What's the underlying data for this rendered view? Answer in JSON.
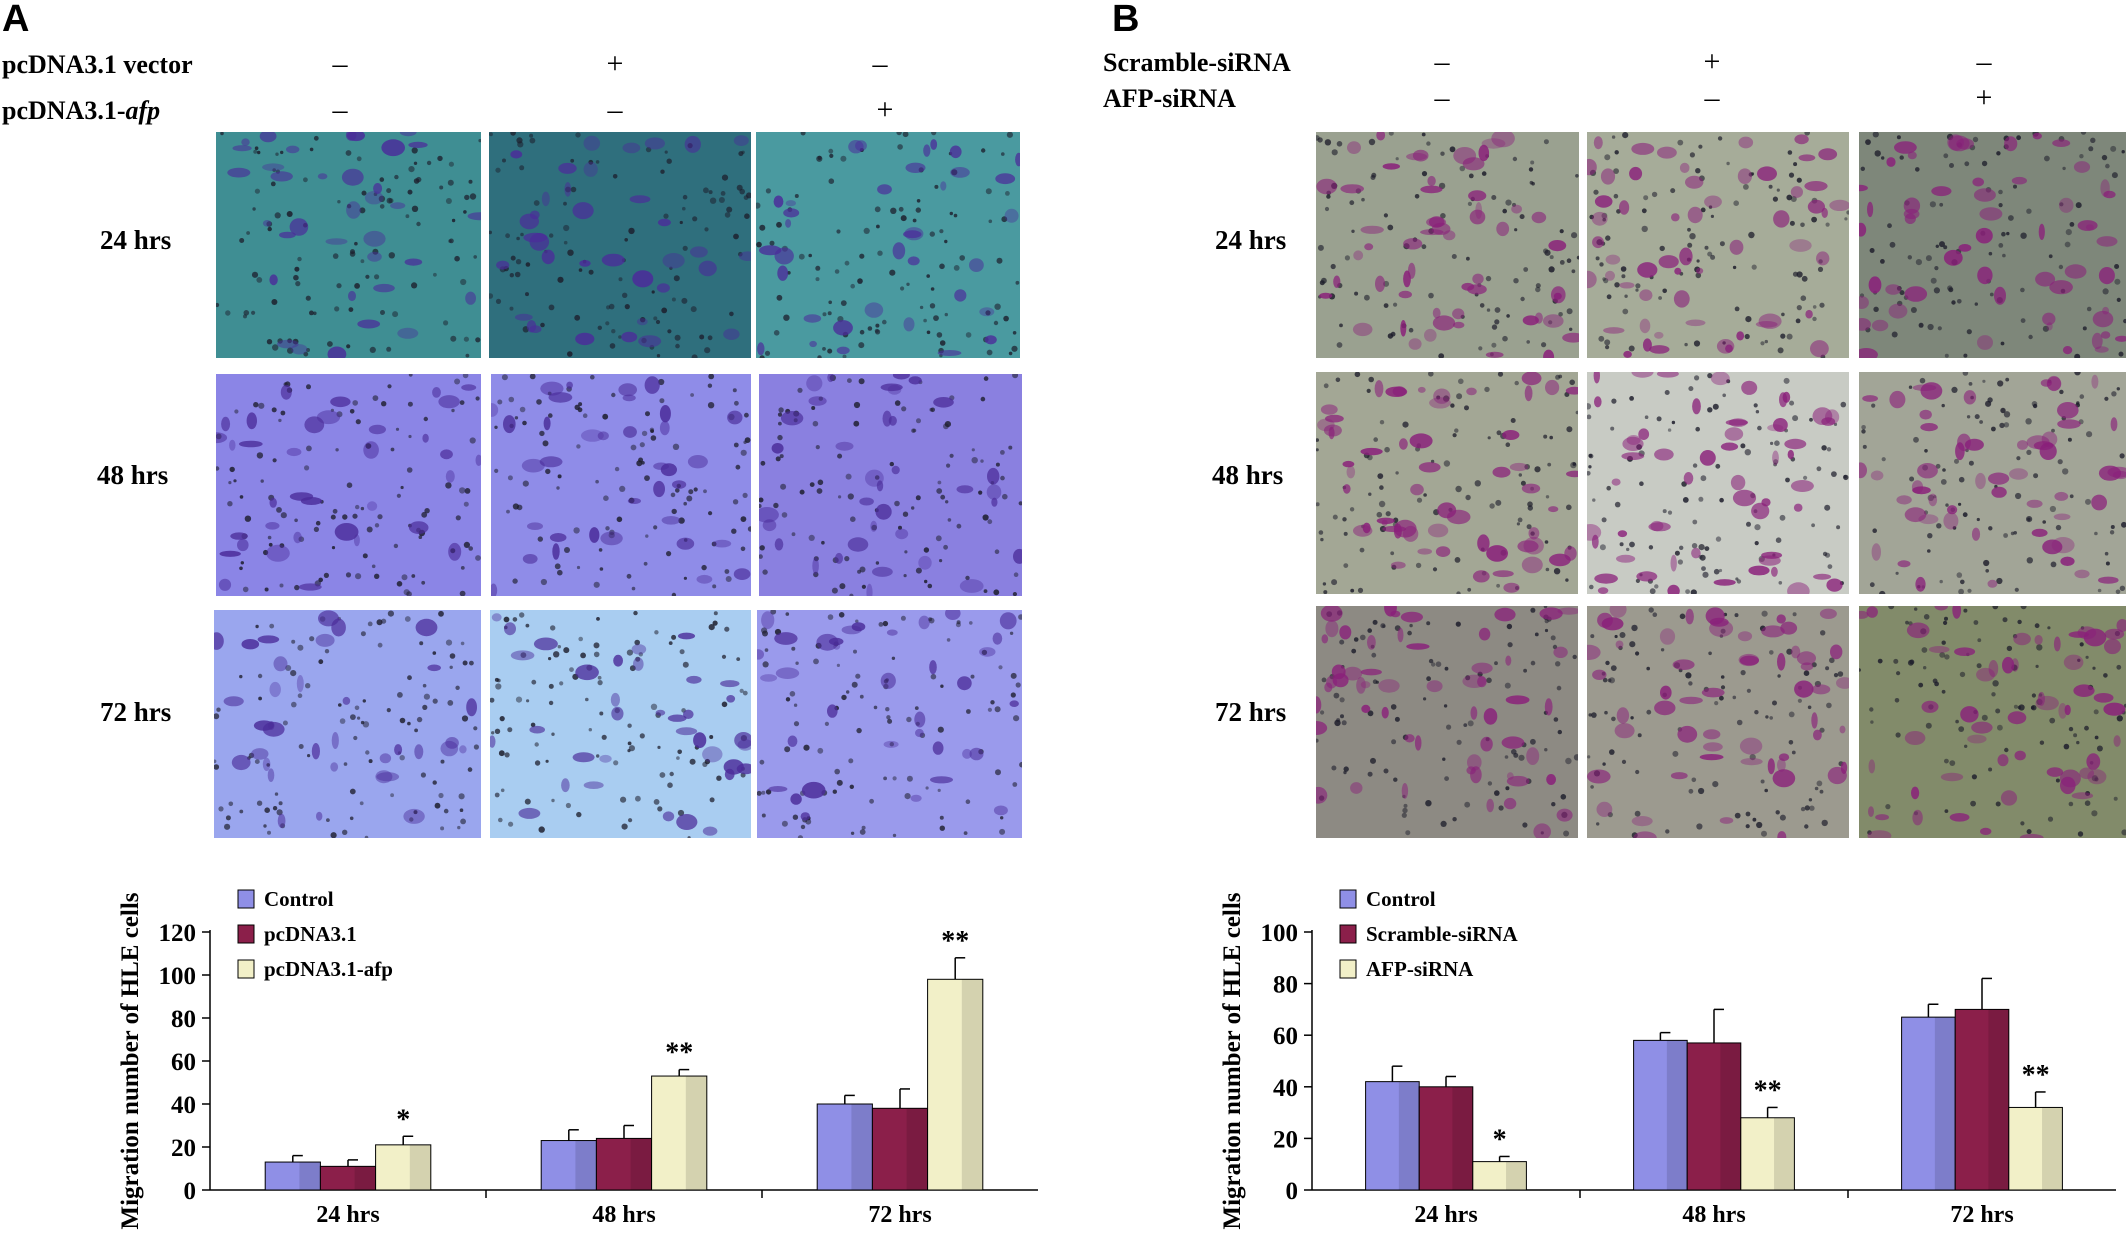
{
  "panels": [
    {
      "letter": "A",
      "conditions": [
        {
          "label": "pcDNA3.1 vector",
          "label_main": "pcDNA3.1 vector",
          "label_italic": "",
          "signs": [
            "–",
            "+",
            "–"
          ]
        },
        {
          "label": "pcDNA3.1-afp",
          "label_main": "pcDNA3.1-",
          "label_italic": "afp",
          "signs": [
            "–",
            "–",
            "+"
          ]
        }
      ],
      "time_points": [
        "24 hrs",
        "48 hrs",
        "72 hrs"
      ],
      "micrograph_colors": [
        [
          "#3f8e93",
          "#2f6f7d",
          "#4a9aa0"
        ],
        [
          "#8b85e6",
          "#8f8ce8",
          "#8a80e0"
        ],
        [
          "#9aa6ee",
          "#a9cdf1",
          "#9a9aec"
        ]
      ],
      "stain_color": "#4b2c9a",
      "chart_data": {
        "type": "bar",
        "ylabel": "Migration number of HLE cells",
        "ylim": [
          0,
          120
        ],
        "yticks": [
          0,
          20,
          40,
          60,
          80,
          100,
          120
        ],
        "categories": [
          "24 hrs",
          "48 hrs",
          "72 hrs"
        ],
        "legend_position": "top-left",
        "series": [
          {
            "name": "Control",
            "color": "#8f8fe6",
            "values": [
              13,
              23,
              40
            ],
            "errors": [
              3,
              5,
              4
            ]
          },
          {
            "name": "pcDNA3.1",
            "color": "#8b1f4a",
            "values": [
              11,
              24,
              38
            ],
            "errors": [
              3,
              6,
              9
            ]
          },
          {
            "name": "pcDNA3.1-afp",
            "color": "#f2f0c8",
            "values": [
              21,
              53,
              98
            ],
            "errors": [
              4,
              3,
              10
            ]
          }
        ],
        "annotations": [
          {
            "category": 0,
            "series": 2,
            "text": "*"
          },
          {
            "category": 1,
            "series": 2,
            "text": "**"
          },
          {
            "category": 2,
            "series": 2,
            "text": "**"
          }
        ]
      }
    },
    {
      "letter": "B",
      "conditions": [
        {
          "label": "Scramble-siRNA",
          "label_main": "Scramble-siRNA",
          "label_italic": "",
          "signs": [
            "–",
            "+",
            "–"
          ]
        },
        {
          "label": "AFP-siRNA",
          "label_main": "AFP-siRNA",
          "label_italic": "",
          "signs": [
            "–",
            "–",
            "+"
          ]
        }
      ],
      "time_points": [
        "24 hrs",
        "48 hrs",
        "72 hrs"
      ],
      "micrograph_colors": [
        [
          "#9aa190",
          "#a6ac99",
          "#7e877a"
        ],
        [
          "#a3a795",
          "#c8cbc4",
          "#a2a597"
        ],
        [
          "#8d8a83",
          "#9c9a8f",
          "#828b6a"
        ]
      ],
      "stain_color": "#8a1f7a",
      "chart_data": {
        "type": "bar",
        "ylabel": "Migration number of HLE cells",
        "ylim": [
          0,
          100
        ],
        "yticks": [
          0,
          20,
          40,
          60,
          80,
          100
        ],
        "categories": [
          "24 hrs",
          "48 hrs",
          "72 hrs"
        ],
        "legend_position": "top-left",
        "series": [
          {
            "name": "Control",
            "color": "#8f8fe6",
            "values": [
              42,
              58,
              67
            ],
            "errors": [
              6,
              3,
              5
            ]
          },
          {
            "name": "Scramble-siRNA",
            "color": "#8b1f4a",
            "values": [
              40,
              57,
              70
            ],
            "errors": [
              4,
              13,
              12
            ]
          },
          {
            "name": "AFP-siRNA",
            "color": "#f2f0c8",
            "values": [
              11,
              28,
              32
            ],
            "errors": [
              2,
              4,
              6
            ]
          }
        ],
        "annotations": [
          {
            "category": 0,
            "series": 2,
            "text": "*"
          },
          {
            "category": 1,
            "series": 2,
            "text": "**"
          },
          {
            "category": 2,
            "series": 2,
            "text": "**"
          }
        ]
      }
    }
  ]
}
